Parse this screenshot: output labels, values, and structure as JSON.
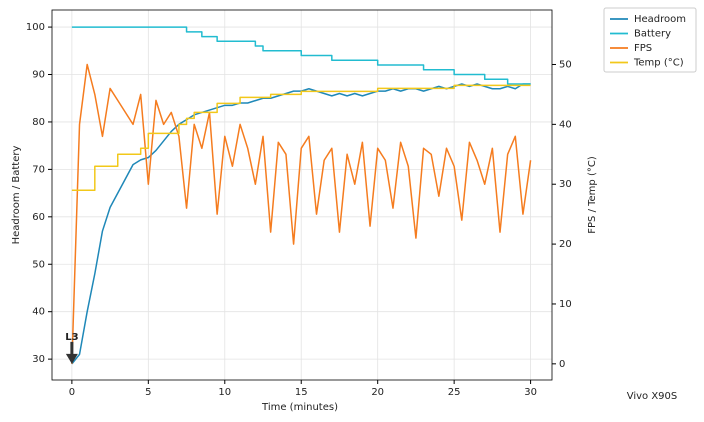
{
  "chart_data": {
    "type": "line",
    "xlabel": "Time (minutes)",
    "ylabel": "Headroom / Battery",
    "y2label": "FPS / Temp (°C)",
    "device": "Vivo X90S",
    "x": [
      0,
      0.5,
      1,
      1.5,
      2,
      2.5,
      3,
      3.5,
      4,
      4.5,
      5,
      5.5,
      6,
      6.5,
      7,
      7.5,
      8,
      8.5,
      9,
      9.5,
      10,
      10.5,
      11,
      11.5,
      12,
      12.5,
      13,
      13.5,
      14,
      14.5,
      15,
      15.5,
      16,
      16.5,
      17,
      17.5,
      18,
      18.5,
      19,
      19.5,
      20,
      20.5,
      21,
      21.5,
      22,
      22.5,
      23,
      23.5,
      24,
      24.5,
      25,
      25.5,
      26,
      26.5,
      27,
      27.5,
      28,
      28.5,
      29,
      29.5,
      30
    ],
    "series": [
      {
        "name": "Headroom",
        "color": "#1f88b8",
        "drawstyle": "line",
        "values": [
          29,
          31,
          40,
          48,
          57,
          62,
          65,
          68,
          71,
          72,
          72.5,
          74,
          76,
          78,
          79.5,
          80.5,
          81.5,
          82,
          82.5,
          83,
          83.5,
          83.5,
          84,
          84,
          84.5,
          85,
          85,
          85.5,
          86,
          86.5,
          86.5,
          87,
          86.5,
          86,
          85.5,
          86,
          85.5,
          86,
          85.5,
          86,
          86.5,
          86.5,
          87,
          86.5,
          87,
          87,
          86.5,
          87,
          87.5,
          87,
          87.5,
          88,
          87.5,
          88,
          87.5,
          87,
          87,
          87.5,
          87,
          88,
          88
        ]
      },
      {
        "name": "Battery",
        "color": "#22bcd0",
        "drawstyle": "steps",
        "values": [
          100,
          100,
          100,
          100,
          100,
          100,
          100,
          100,
          100,
          100,
          100,
          100,
          100,
          100,
          100,
          99,
          99,
          98,
          98,
          97,
          97,
          97,
          97,
          97,
          96,
          95,
          95,
          95,
          95,
          95,
          94,
          94,
          94,
          94,
          93,
          93,
          93,
          93,
          93,
          93,
          92,
          92,
          92,
          92,
          92,
          92,
          91,
          91,
          91,
          91,
          90,
          90,
          90,
          90,
          89,
          89,
          89,
          88,
          88,
          88,
          88
        ]
      },
      {
        "name": "FPS",
        "color": "#f57c1f",
        "drawstyle": "line",
        "axis": "y2",
        "values": [
          0,
          40,
          50,
          45,
          38,
          46,
          44,
          42,
          40,
          45,
          30,
          44,
          40,
          42,
          38,
          26,
          40,
          36,
          42,
          25,
          38,
          33,
          40,
          36,
          30,
          38,
          22,
          37,
          35,
          20,
          36,
          38,
          25,
          34,
          36,
          22,
          35,
          30,
          37,
          23,
          36,
          34,
          26,
          37,
          33,
          21,
          36,
          35,
          28,
          36,
          33,
          24,
          37,
          34,
          30,
          36,
          22,
          35,
          38,
          25,
          34
        ]
      },
      {
        "name": "Temp (°C)",
        "color": "#f2c81a",
        "drawstyle": "steps",
        "axis": "y2",
        "values": [
          29,
          29,
          29,
          33,
          33,
          33,
          35,
          35,
          35,
          36,
          38.5,
          38.5,
          38.5,
          38.5,
          40,
          41,
          42,
          42,
          42,
          43.5,
          43.5,
          43.5,
          44.5,
          44.5,
          44.5,
          44.5,
          45,
          45,
          45,
          45,
          45.5,
          45.5,
          45.5,
          45.5,
          45.5,
          45.5,
          45.5,
          45.5,
          45.5,
          45.5,
          46,
          46,
          46,
          46,
          46,
          46,
          46,
          46,
          46,
          46,
          46.5,
          46.5,
          46.5,
          46.5,
          46.5,
          46.5,
          46.5,
          46.5,
          46.5,
          46.5,
          46.5
        ]
      }
    ],
    "annotations": [
      {
        "text": "L3",
        "x": 0,
        "y": 29
      }
    ],
    "xlim": [
      -1.3,
      31.4
    ],
    "ylim": [
      25.6,
      103.6
    ],
    "y2lim": [
      -2.7,
      59.1
    ],
    "xticks": [
      0,
      5,
      10,
      15,
      20,
      25,
      30
    ],
    "yticks": [
      30,
      40,
      50,
      60,
      70,
      80,
      90,
      100
    ],
    "y2ticks": [
      0,
      10,
      20,
      30,
      40,
      50
    ],
    "grid": true,
    "legend": "outside-upper-right"
  }
}
